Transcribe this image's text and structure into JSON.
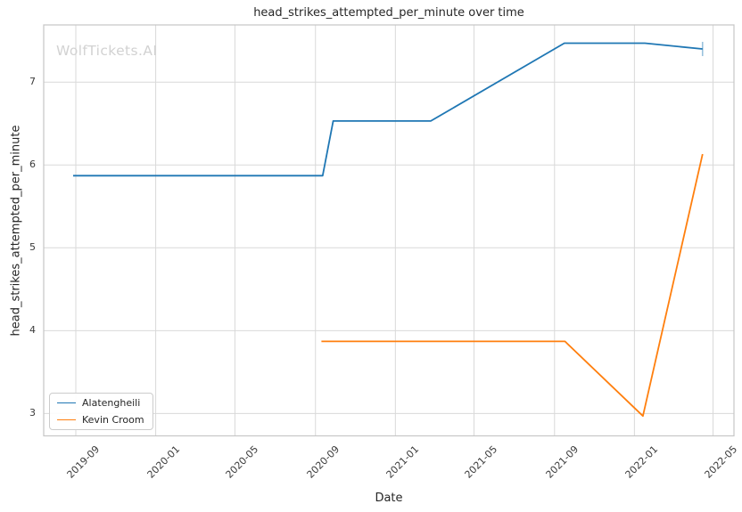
{
  "watermark": {
    "text": "WolfTickets.AI",
    "color": "#d2d2d2"
  },
  "chart_data": {
    "type": "line",
    "title": "head_strikes_attempted_per_minute over time",
    "xlabel": "Date",
    "ylabel": "head_strikes_attempted_per_minute",
    "grid": true,
    "legend_position": "lower left",
    "ylim": [
      2.73,
      7.69
    ],
    "xlim": [
      "2019-07-14",
      "2022-06-02"
    ],
    "yticks": [
      3,
      4,
      5,
      6,
      7
    ],
    "xticks": [
      {
        "date": "2019-09-01",
        "label": "2019-09"
      },
      {
        "date": "2020-01-01",
        "label": "2020-01"
      },
      {
        "date": "2020-05-01",
        "label": "2020-05"
      },
      {
        "date": "2020-09-01",
        "label": "2020-09"
      },
      {
        "date": "2021-01-01",
        "label": "2021-01"
      },
      {
        "date": "2021-05-01",
        "label": "2021-05"
      },
      {
        "date": "2021-09-01",
        "label": "2021-09"
      },
      {
        "date": "2022-01-01",
        "label": "2022-01"
      },
      {
        "date": "2022-05-01",
        "label": "2022-05"
      }
    ],
    "series": [
      {
        "name": "Alatengheili",
        "color": "#1f77b4",
        "end_cap": true,
        "points": [
          [
            "2019-08-28",
            5.87
          ],
          [
            "2020-09-12",
            5.87
          ],
          [
            "2020-09-28",
            6.53
          ],
          [
            "2021-02-24",
            6.53
          ],
          [
            "2021-09-16",
            7.47
          ],
          [
            "2022-01-17",
            7.47
          ],
          [
            "2022-04-15",
            7.4
          ]
        ]
      },
      {
        "name": "Kevin Croom",
        "color": "#ff7f0e",
        "end_cap": false,
        "points": [
          [
            "2020-09-10",
            3.87
          ],
          [
            "2021-09-17",
            3.87
          ],
          [
            "2022-01-14",
            2.97
          ],
          [
            "2022-04-15",
            6.13
          ]
        ]
      }
    ],
    "colors": {
      "grid": "#d9d9d9",
      "spine": "#c6c6c6",
      "text": "#262626"
    }
  }
}
